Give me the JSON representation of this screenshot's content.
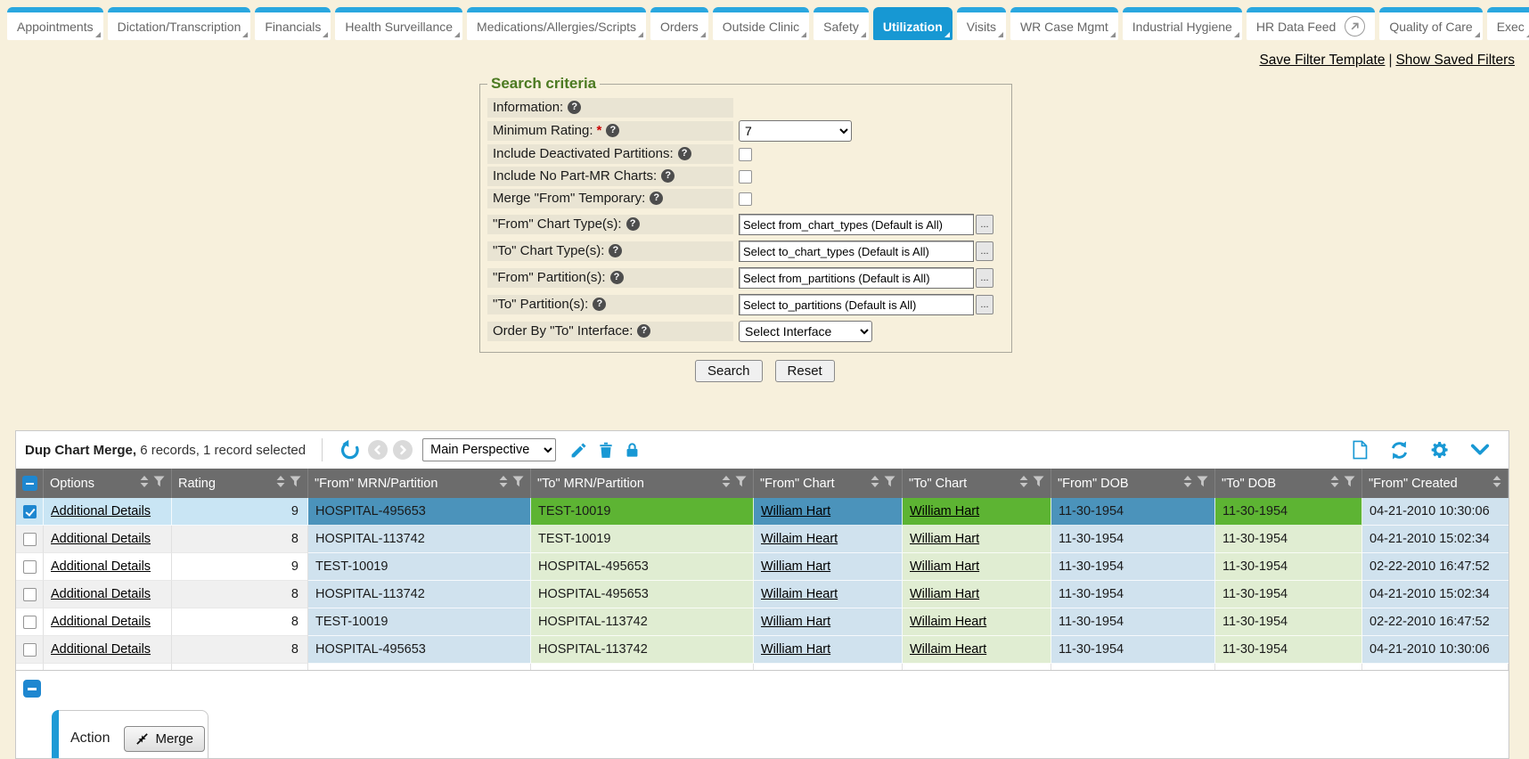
{
  "tabs": {
    "items": [
      {
        "label": "Appointments",
        "active": false
      },
      {
        "label": "Dictation/Transcription",
        "active": false
      },
      {
        "label": "Financials",
        "active": false
      },
      {
        "label": "Health Surveillance",
        "active": false
      },
      {
        "label": "Medications/Allergies/Scripts",
        "active": false
      },
      {
        "label": "Orders",
        "active": false
      },
      {
        "label": "Outside Clinic",
        "active": false
      },
      {
        "label": "Safety",
        "active": false
      },
      {
        "label": "Utilization",
        "active": true
      },
      {
        "label": "Visits",
        "active": false
      },
      {
        "label": "WR Case Mgmt",
        "active": false
      },
      {
        "label": "Industrial Hygiene",
        "active": false
      },
      {
        "label": "HR Data Feed",
        "active": false,
        "trailing_icon": "external-link-circle-icon",
        "corner": false
      },
      {
        "label": "Quality of Care",
        "active": false
      },
      {
        "label": "Exec",
        "active": false,
        "clipped": true
      }
    ]
  },
  "filter_links": {
    "save": "Save Filter Template",
    "separator": "|",
    "show": "Show Saved Filters"
  },
  "search_criteria": {
    "legend": "Search criteria",
    "rows": [
      {
        "label": "Information:",
        "help": true,
        "control": "none"
      },
      {
        "label": "Minimum Rating:",
        "required": true,
        "help": true,
        "control": "select",
        "value": "7"
      },
      {
        "label": "Include Deactivated Partitions:",
        "help": true,
        "control": "checkbox",
        "checked": false
      },
      {
        "label": "Include No Part-MR Charts:",
        "help": true,
        "control": "checkbox",
        "checked": false
      },
      {
        "label": "Merge \"From\" Temporary:",
        "help": true,
        "control": "checkbox",
        "checked": false
      },
      {
        "label": "\"From\" Chart Type(s):",
        "help": true,
        "control": "picker",
        "value": "Select from_chart_types (Default is All)",
        "button": "..."
      },
      {
        "label": "\"To\" Chart Type(s):",
        "help": true,
        "control": "picker",
        "value": "Select to_chart_types (Default is All)",
        "button": "..."
      },
      {
        "label": "\"From\" Partition(s):",
        "help": true,
        "control": "picker",
        "value": "Select from_partitions (Default is All)",
        "button": "..."
      },
      {
        "label": "\"To\" Partition(s):",
        "help": true,
        "control": "picker",
        "value": "Select to_partitions (Default is All)",
        "button": "..."
      },
      {
        "label": "Order By \"To\" Interface:",
        "help": true,
        "control": "select",
        "value": "Select Interface"
      }
    ],
    "buttons": {
      "search": "Search",
      "reset": "Reset"
    }
  },
  "grid": {
    "title": "Dup Chart Merge,",
    "summary": "6 records, 1 record selected",
    "perspective": "Main Perspective",
    "columns": [
      {
        "key": "select",
        "type": "checkbox",
        "label": ""
      },
      {
        "key": "options",
        "label": "Options",
        "sortable": true,
        "filterable": true
      },
      {
        "key": "rating",
        "label": "Rating",
        "sortable": true,
        "filterable": true
      },
      {
        "key": "from_mrn",
        "label": "\"From\" MRN/Partition",
        "sortable": true,
        "filterable": true,
        "tint": "from"
      },
      {
        "key": "to_mrn",
        "label": "\"To\" MRN/Partition",
        "sortable": true,
        "filterable": true,
        "tint": "to"
      },
      {
        "key": "from_chart",
        "label": "\"From\" Chart",
        "sortable": true,
        "filterable": true,
        "tint": "from",
        "link": true
      },
      {
        "key": "to_chart",
        "label": "\"To\" Chart",
        "sortable": true,
        "filterable": true,
        "tint": "to",
        "link": true
      },
      {
        "key": "from_dob",
        "label": "\"From\" DOB",
        "sortable": true,
        "filterable": true,
        "tint": "from"
      },
      {
        "key": "to_dob",
        "label": "\"To\" DOB",
        "sortable": true,
        "filterable": true,
        "tint": "to"
      },
      {
        "key": "from_created",
        "label": "\"From\" Created",
        "sortable": true,
        "filterable": false,
        "tint": "from_static"
      }
    ],
    "rows": [
      {
        "selected": true,
        "options_label": "Additional Details",
        "rating": "9",
        "from_mrn": "HOSPITAL-495653",
        "to_mrn": "TEST-10019",
        "from_chart": "William Hart",
        "to_chart": "William Hart",
        "from_dob": "11-30-1954",
        "to_dob": "11-30-1954",
        "from_created": "04-21-2010 10:30:06"
      },
      {
        "selected": false,
        "options_label": "Additional Details",
        "rating": "8",
        "from_mrn": "HOSPITAL-113742",
        "to_mrn": "TEST-10019",
        "from_chart": "Willaim Heart",
        "to_chart": "William Hart",
        "from_dob": "11-30-1954",
        "to_dob": "11-30-1954",
        "from_created": "04-21-2010 15:02:34"
      },
      {
        "selected": false,
        "options_label": "Additional Details",
        "rating": "9",
        "from_mrn": "TEST-10019",
        "to_mrn": "HOSPITAL-495653",
        "from_chart": "William Hart",
        "to_chart": "William Hart",
        "from_dob": "11-30-1954",
        "to_dob": "11-30-1954",
        "from_created": "02-22-2010 16:47:52"
      },
      {
        "selected": false,
        "options_label": "Additional Details",
        "rating": "8",
        "from_mrn": "HOSPITAL-113742",
        "to_mrn": "HOSPITAL-495653",
        "from_chart": "Willaim Heart",
        "to_chart": "William Hart",
        "from_dob": "11-30-1954",
        "to_dob": "11-30-1954",
        "from_created": "04-21-2010 15:02:34"
      },
      {
        "selected": false,
        "options_label": "Additional Details",
        "rating": "8",
        "from_mrn": "TEST-10019",
        "to_mrn": "HOSPITAL-113742",
        "from_chart": "William Hart",
        "to_chart": "Willaim Heart",
        "from_dob": "11-30-1954",
        "to_dob": "11-30-1954",
        "from_created": "02-22-2010 16:47:52"
      },
      {
        "selected": false,
        "options_label": "Additional Details",
        "rating": "8",
        "from_mrn": "HOSPITAL-495653",
        "to_mrn": "HOSPITAL-113742",
        "from_chart": "William Hart",
        "to_chart": "Willaim Heart",
        "from_dob": "11-30-1954",
        "to_dob": "11-30-1954",
        "from_created": "04-21-2010 10:30:06"
      }
    ]
  },
  "action_panel": {
    "label": "Action",
    "merge_button": "Merge"
  },
  "colors": {
    "accent_blue": "#1798d3",
    "icon_blue": "#1898d4",
    "selected_from_blue": "#4b93bb",
    "selected_to_green": "#5db433",
    "from_light_blue": "#d0e2ee",
    "to_light_green": "#e0edd2",
    "page_cream": "#f7f0dc",
    "header_gray": "#6c6c6c",
    "legend_green": "#4c7a21"
  }
}
